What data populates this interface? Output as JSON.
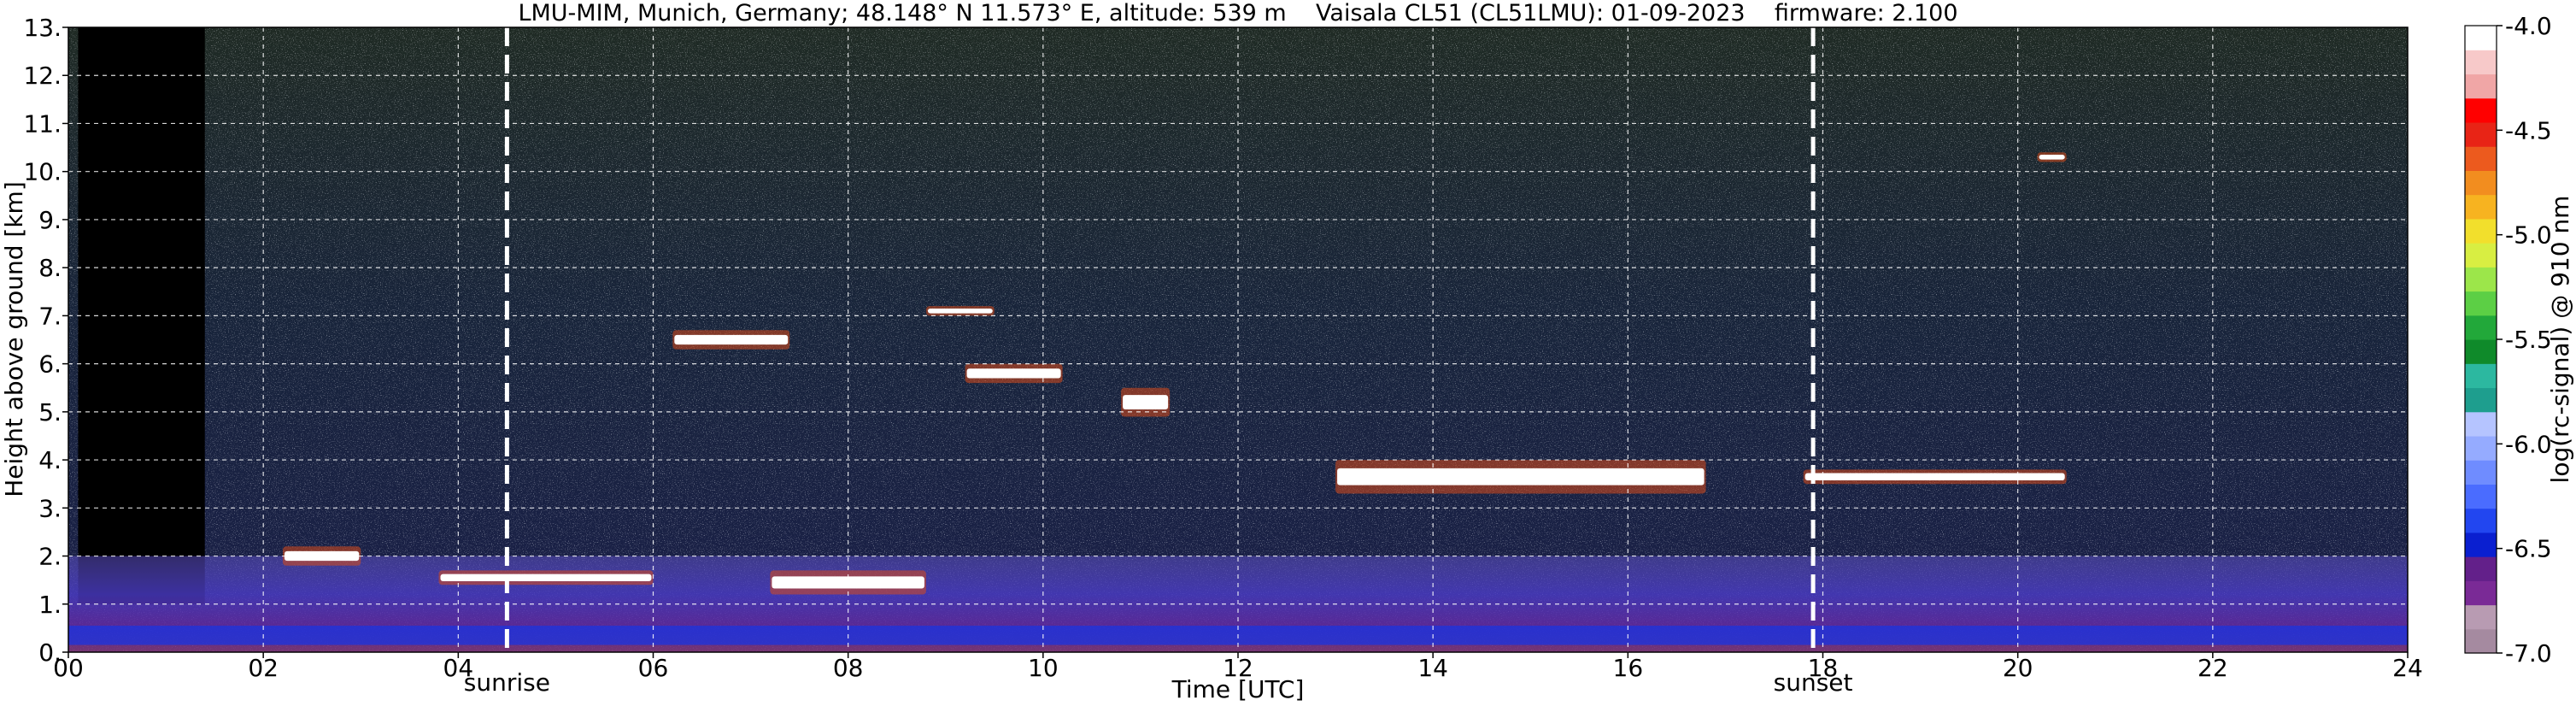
{
  "chart_data": {
    "type": "heatmap",
    "title": "LMU-MIM, Munich, Germany; 48.148° N 11.573° E, altitude: 539 m    Vaisala CL51 (CL51LMU): 01-09-2023    firmware: 2.100",
    "xlabel": "Time [UTC]",
    "ylabel": "Height above ground [km]",
    "xlim": [
      0,
      24
    ],
    "ylim": [
      0,
      13
    ],
    "x_ticks": [
      "00",
      "02",
      "04",
      "06",
      "08",
      "10",
      "12",
      "14",
      "16",
      "18",
      "20",
      "22",
      "24"
    ],
    "y_ticks": [
      "0.",
      "1.",
      "2.",
      "3.",
      "4.",
      "5.",
      "6.",
      "7.",
      "8.",
      "9.",
      "10.",
      "11.",
      "12.",
      "13."
    ],
    "grid": true,
    "colorbar": {
      "label": "log(rc-signal) @ 910 nm",
      "range": [
        -7.0,
        -4.0
      ],
      "ticks": [
        "-4.0",
        "-4.5",
        "-5.0",
        "-5.5",
        "-6.0",
        "-6.5",
        "-7.0"
      ],
      "colors": [
        "#a58aa0",
        "#b89bb2",
        "#7a2a96",
        "#63208a",
        "#0a1fd0",
        "#2246f0",
        "#4a6cff",
        "#6f8cff",
        "#95abff",
        "#b5c4ff",
        "#1e9e8e",
        "#2cb8a0",
        "#0f8a2a",
        "#22a83a",
        "#5ccf45",
        "#9ce64a",
        "#d8ee42",
        "#f2df2c",
        "#f7b320",
        "#f28d1f",
        "#ec5a1e",
        "#e82416",
        "#ff0000",
        "#f0a6a6",
        "#f7c9c9",
        "#ffffff"
      ]
    },
    "markers": [
      {
        "label": "sunrise",
        "time": 4.5
      },
      {
        "label": "sunset",
        "time": 17.9
      }
    ],
    "layers": [
      {
        "feature": "no data",
        "t_start": 0.1,
        "t_end": 1.4,
        "h_bottom": 1.0,
        "h_top": 13.0
      },
      {
        "feature": "aerosol layer",
        "t_start": 0,
        "t_end": 24,
        "h_bottom": 0,
        "h_top": 2.0
      },
      {
        "feature": "cloud",
        "t_start": 2.2,
        "t_end": 3.0,
        "h_bottom": 1.8,
        "h_top": 2.2
      },
      {
        "feature": "cloud",
        "t_start": 3.8,
        "t_end": 6.0,
        "h_bottom": 1.4,
        "h_top": 1.7
      },
      {
        "feature": "cloud",
        "t_start": 7.2,
        "t_end": 8.8,
        "h_bottom": 1.2,
        "h_top": 1.7
      },
      {
        "feature": "cloud",
        "t_start": 6.2,
        "t_end": 7.4,
        "h_bottom": 6.3,
        "h_top": 6.7
      },
      {
        "feature": "cloud",
        "t_start": 8.8,
        "t_end": 9.5,
        "h_bottom": 7.0,
        "h_top": 7.2
      },
      {
        "feature": "cloud",
        "t_start": 9.2,
        "t_end": 10.2,
        "h_bottom": 5.6,
        "h_top": 6.0
      },
      {
        "feature": "cloud",
        "t_start": 10.8,
        "t_end": 11.3,
        "h_bottom": 4.9,
        "h_top": 5.5
      },
      {
        "feature": "cloud",
        "t_start": 13.0,
        "t_end": 16.8,
        "h_bottom": 3.3,
        "h_top": 4.0
      },
      {
        "feature": "cloud",
        "t_start": 17.8,
        "t_end": 20.5,
        "h_bottom": 3.5,
        "h_top": 3.8
      },
      {
        "feature": "cloud",
        "t_start": 20.2,
        "t_end": 20.5,
        "h_bottom": 10.2,
        "h_top": 10.4
      }
    ]
  }
}
